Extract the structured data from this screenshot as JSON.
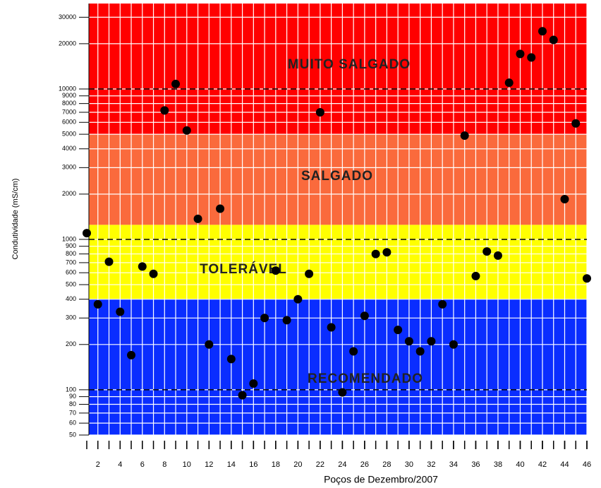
{
  "chart_data": {
    "type": "scatter",
    "y_label": "Condutividade (mS/cm)",
    "x_label": "Poços de Dezembro/2007",
    "log_y": true,
    "grid": true,
    "grid_color": "#ffffff",
    "color": "#000000",
    "x": [
      1,
      2,
      3,
      4,
      5,
      6,
      7,
      8,
      9,
      10,
      11,
      12,
      13,
      14,
      15,
      16,
      17,
      18,
      19,
      20,
      21,
      22,
      23,
      24,
      25,
      26,
      27,
      28,
      29,
      30,
      31,
      32,
      33,
      34,
      35,
      36,
      37,
      38,
      39,
      40,
      41,
      42,
      43,
      44,
      45,
      46
    ],
    "values": [
      1100,
      370,
      710,
      330,
      170,
      660,
      590,
      7200,
      10800,
      5300,
      1370,
      200,
      1600,
      160,
      92,
      110,
      300,
      620,
      290,
      400,
      590,
      7000,
      260,
      96,
      180,
      310,
      800,
      820,
      250,
      210,
      180,
      210,
      370,
      200,
      4900,
      570,
      830,
      780,
      11000,
      17100,
      16200,
      24200,
      21200,
      1850,
      5900,
      550
    ],
    "xlim": [
      1,
      46
    ],
    "ylim": [
      50,
      37000
    ],
    "xticks": [
      2,
      4,
      6,
      8,
      10,
      12,
      14,
      16,
      18,
      20,
      22,
      24,
      26,
      28,
      30,
      32,
      34,
      36,
      38,
      40,
      42,
      44,
      46
    ],
    "yticks": [
      50,
      60,
      70,
      80,
      90,
      100,
      200,
      300,
      400,
      500,
      600,
      700,
      800,
      900,
      1000,
      2000,
      3000,
      4000,
      5000,
      6000,
      7000,
      8000,
      9000,
      10000,
      20000,
      30000
    ],
    "bands": [
      {
        "label": "RECOMENDADO",
        "from": 50,
        "to": 400,
        "color": "#0a2dff"
      },
      {
        "label": "TOLERÁVEL",
        "from": 400,
        "to": 1250,
        "color": "#ffff00"
      },
      {
        "label": "SALGADO",
        "from": 1250,
        "to": 5000,
        "color": "#fa6a3c"
      },
      {
        "label": "MUITO SALGADO",
        "from": 5000,
        "to": 37000,
        "color": "#ff0000"
      }
    ],
    "reference_lines": [
      100,
      1000,
      10000
    ]
  }
}
